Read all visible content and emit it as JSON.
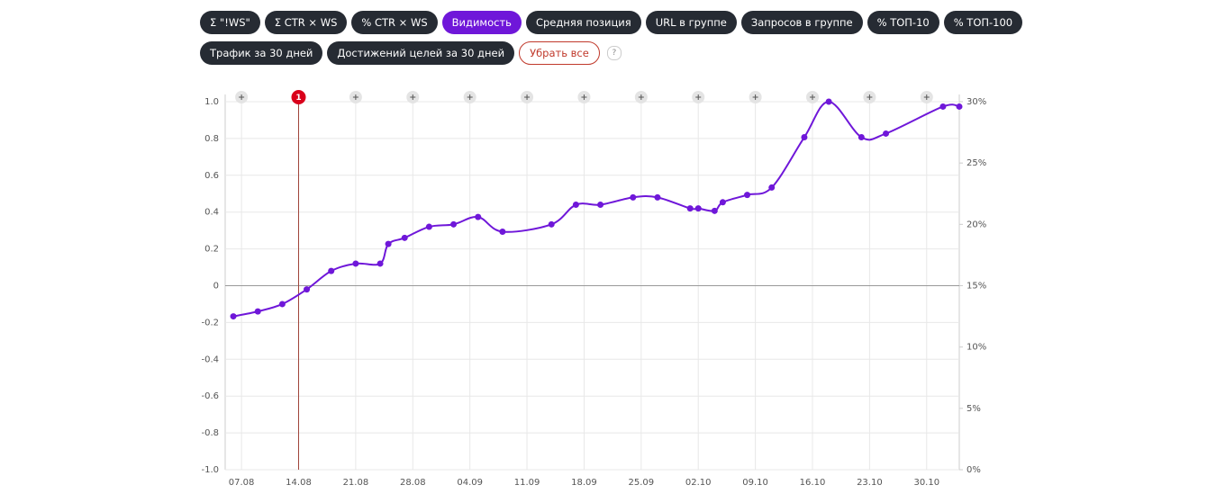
{
  "toolbar": {
    "rows": [
      [
        {
          "label": "Σ \"!WS\"",
          "active": false
        },
        {
          "label": "Σ CTR × WS",
          "active": false
        },
        {
          "label": "% CTR × WS",
          "active": false
        },
        {
          "label": "Видимость",
          "active": true
        },
        {
          "label": "Средняя позиция",
          "active": false
        },
        {
          "label": "URL в группе",
          "active": false
        },
        {
          "label": "Запросов в группе",
          "active": false
        },
        {
          "label": "% ТОП-10",
          "active": false
        },
        {
          "label": "% ТОП-100",
          "active": false
        }
      ],
      [
        {
          "label": "Трафик за 30 дней",
          "active": false
        },
        {
          "label": "Достижений целей за 30 дней",
          "active": false
        }
      ]
    ],
    "clear": "Убрать все",
    "help": "?"
  },
  "chart_data": {
    "type": "line",
    "x": [
      "06.08",
      "09.08",
      "12.08",
      "15.08",
      "18.08",
      "21.08",
      "24.08",
      "25.08",
      "27.08",
      "30.08",
      "02.09",
      "05.09",
      "08.09",
      "14.09",
      "17.09",
      "20.09",
      "24.09",
      "27.09",
      "01.10",
      "02.10",
      "04.10",
      "05.10",
      "08.10",
      "11.10",
      "15.10",
      "18.10",
      "22.10",
      "25.10",
      "01.11",
      "03.11"
    ],
    "xlim": [
      "05.08",
      "03.11"
    ],
    "xticks": [
      "07.08",
      "14.08",
      "21.08",
      "28.08",
      "04.09",
      "11.09",
      "18.09",
      "25.09",
      "02.10",
      "09.10",
      "16.10",
      "23.10",
      "30.10"
    ],
    "ylim": [
      -1,
      1
    ],
    "yticks": [
      {
        "value": -1,
        "label": "-1.0"
      },
      -0.8,
      -0.6,
      -0.4,
      -0.2,
      0,
      0.2,
      0.4,
      0.6,
      0.8,
      {
        "value": 1,
        "label": "1.0"
      }
    ],
    "y2lim": [
      0,
      30
    ],
    "y2ticks": [
      {
        "value": 0,
        "label": "0%"
      },
      {
        "value": 5,
        "label": "5%"
      },
      {
        "value": 10,
        "label": "10%"
      },
      {
        "value": 15,
        "label": "15%"
      },
      {
        "value": 20,
        "label": "20%"
      },
      {
        "value": 25,
        "label": "25%"
      },
      {
        "value": 30,
        "label": "30%"
      }
    ],
    "grid": true,
    "series": [
      {
        "color": "#6f17d9",
        "axis": "y2",
        "values": [
          12.5,
          12.9,
          13.5,
          14.7,
          16.2,
          16.8,
          16.8,
          18.4,
          18.9,
          19.8,
          20.0,
          20.6,
          19.4,
          20.0,
          21.6,
          21.6,
          22.2,
          22.2,
          21.3,
          21.3,
          21.1,
          21.8,
          22.4,
          23.0,
          27.1,
          30.0,
          27.1,
          27.4,
          29.6,
          29.6
        ]
      }
    ],
    "annotations": [
      {
        "x": "14.08",
        "label": "1",
        "color": "#d9001b"
      }
    ]
  }
}
